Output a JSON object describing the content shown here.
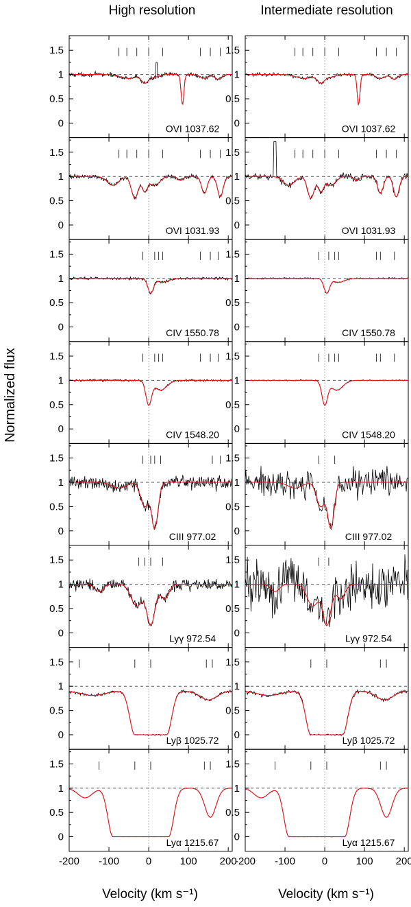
{
  "figure": {
    "ylabel": "Normalized flux",
    "xlabel": "Velocity (km s⁻¹)"
  },
  "chart_data": {
    "type": "line",
    "layout": "grid of 8 rows x 2 columns of normalized absorption-line profiles",
    "columns": [
      {
        "title": "High resolution"
      },
      {
        "title": "Intermediate resolution"
      }
    ],
    "xlim": [
      -200,
      210
    ],
    "ylim": [
      -0.3,
      1.8
    ],
    "xticks": [
      -200,
      -100,
      0,
      100,
      200
    ],
    "yticks": [
      0,
      0.5,
      1,
      1.5
    ],
    "ytick_labels": [
      "0",
      "0.5",
      "1",
      "1.5"
    ],
    "continuum_level": 1,
    "reference_velocity": 0,
    "series_styles": [
      {
        "name": "observed spectrum",
        "color": "#000000"
      },
      {
        "name": "model fit",
        "color": "#e8151b"
      }
    ],
    "rows": [
      {
        "line": "OVI 1037.62",
        "components": [
          [
            -75,
            -55,
            -30,
            0,
            35,
            130,
            155,
            180
          ],
          [
            -75,
            -55,
            -30,
            0,
            35,
            130,
            155,
            180
          ]
        ],
        "profile": {
          "features": [
            {
              "v": -50,
              "depth": 0.08,
              "width": 30
            },
            {
              "v": -10,
              "depth": 0.15,
              "width": 12
            },
            {
              "v": 10,
              "depth": 0.06,
              "width": 20
            },
            {
              "v": 85,
              "depth": 0.62,
              "width": 5
            },
            {
              "v": 140,
              "depth": 0.08,
              "width": 15
            },
            {
              "v": 175,
              "depth": 0.1,
              "width": 12
            }
          ],
          "noise": [
            0.03,
            0.025
          ]
        }
      },
      {
        "line": "OVI 1031.93",
        "components": [
          [
            -75,
            -55,
            -30,
            0,
            35,
            130,
            155,
            180
          ],
          [
            -75,
            -55,
            -30,
            0,
            35,
            130,
            155,
            180
          ]
        ],
        "profile": {
          "features": [
            {
              "v": -90,
              "depth": 0.18,
              "width": 20
            },
            {
              "v": -35,
              "depth": 0.45,
              "width": 12
            },
            {
              "v": -10,
              "depth": 0.3,
              "width": 10
            },
            {
              "v": 15,
              "depth": 0.18,
              "width": 18
            },
            {
              "v": 80,
              "depth": 0.08,
              "width": 10
            },
            {
              "v": 140,
              "depth": 0.35,
              "width": 10
            },
            {
              "v": 180,
              "depth": 0.42,
              "width": 10
            }
          ],
          "noise": [
            0.03,
            0.05
          ]
        }
      },
      {
        "line": "CIV 1550.78",
        "components": [
          [
            -15,
            15,
            25,
            35,
            130,
            155,
            175
          ],
          [
            -15,
            10,
            25,
            35,
            130,
            140,
            175
          ]
        ],
        "profile": {
          "features": [
            {
              "v": 5,
              "depth": 0.3,
              "width": 10
            },
            {
              "v": 35,
              "depth": 0.08,
              "width": 20
            }
          ],
          "noise": [
            0.02,
            0.012
          ]
        }
      },
      {
        "line": "CIV 1548.20",
        "components": [
          [
            -15,
            15,
            25,
            35,
            130,
            155,
            175
          ],
          [
            -15,
            10,
            25,
            35,
            130,
            140,
            175
          ]
        ],
        "profile": {
          "features": [
            {
              "v": 0,
              "depth": 0.5,
              "width": 10
            },
            {
              "v": 30,
              "depth": 0.2,
              "width": 22
            }
          ],
          "noise": [
            0.015,
            0.008
          ]
        }
      },
      {
        "line": "CIII 977.02",
        "components": [
          [
            -15,
            5,
            15,
            30,
            160,
            180
          ],
          [
            -15,
            25
          ]
        ],
        "profile": {
          "features": [
            {
              "v": -10,
              "depth": 0.5,
              "width": 15
            },
            {
              "v": 15,
              "depth": 0.95,
              "width": 12
            },
            {
              "v": -75,
              "depth": 0.12,
              "width": 25
            }
          ],
          "noise": [
            0.1,
            0.2
          ]
        }
      },
      {
        "line": "Lyγ 972.54",
        "components": [
          [
            -25,
            -10,
            5,
            35
          ],
          [
            -15,
            10
          ]
        ],
        "profile": {
          "features": [
            {
              "v": -30,
              "depth": 0.45,
              "width": 20
            },
            {
              "v": 5,
              "depth": 0.85,
              "width": 15
            },
            {
              "v": 40,
              "depth": 0.3,
              "width": 15
            },
            {
              "v": -125,
              "depth": 0.15,
              "width": 15
            }
          ],
          "noise": [
            0.08,
            0.35
          ]
        }
      },
      {
        "line": "Lyβ 1025.72",
        "components": [
          [
            -175,
            -35,
            5,
            145,
            160
          ],
          [
            -35,
            5,
            140,
            155
          ]
        ],
        "profile": {
          "features": [
            {
              "v": 5,
              "depth": 1.0,
              "width": 40,
              "sat": true
            },
            {
              "v": 150,
              "depth": 0.2,
              "width": 30
            },
            {
              "v": -140,
              "depth": 0.1,
              "width": 40
            }
          ],
          "continuum": 0.9,
          "noise": [
            0.02,
            0.03
          ]
        }
      },
      {
        "line": "Lyα 1215.67",
        "components": [
          [
            -125,
            -35,
            5,
            140,
            155
          ],
          [
            -125,
            -35,
            5,
            140,
            155
          ]
        ],
        "profile": {
          "features": [
            {
              "v": -20,
              "depth": 1.0,
              "width": 70,
              "sat": true
            },
            {
              "v": 155,
              "depth": 0.6,
              "width": 20
            },
            {
              "v": -160,
              "depth": 0.2,
              "width": 25
            }
          ],
          "continuum": 1.0,
          "noise": [
            0.005,
            0.005
          ]
        }
      }
    ]
  }
}
